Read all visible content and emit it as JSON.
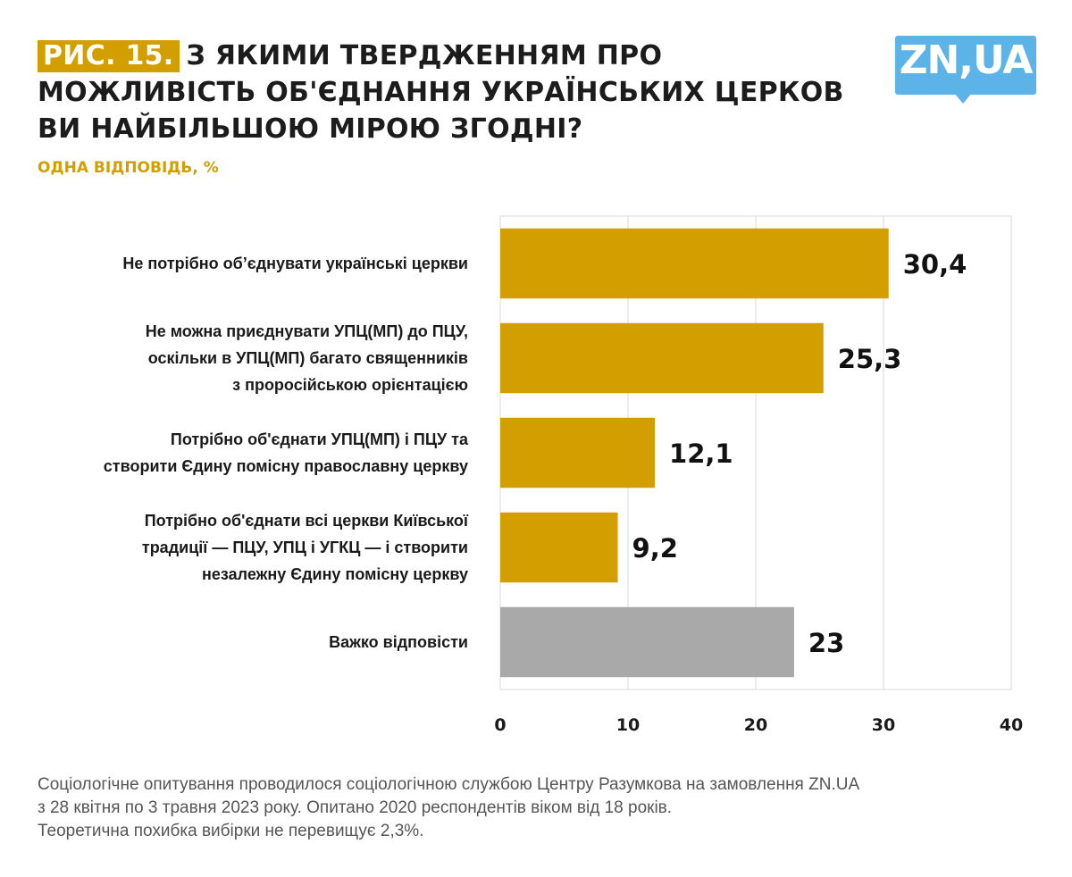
{
  "header": {
    "figure_badge": "Рис. 15.",
    "title": "З якими твердженням про можливість об'єднання українських церков ви найбільшою мірою згодні?",
    "subtitle": "ОДНА ВІДПОВІДЬ, %"
  },
  "logo": {
    "text": "ZN,UA",
    "color": "#5bb3e8"
  },
  "colors": {
    "accent": "#d39e00",
    "neutral_bar": "#a9a9a9",
    "grid": "#d9d9d9"
  },
  "chart_data": {
    "type": "bar",
    "orientation": "horizontal",
    "title": "З яким твердженням про можливість об'єднання українських церков ви найбільшою мірою згодні?",
    "subtitle": "ОДНА ВІДПОВІДЬ, %",
    "categories": [
      [
        "Не потрібно об’єднувати українські церкви"
      ],
      [
        "Не можна приєднувати  УПЦ(МП)  до ПЦУ,",
        "оскільки в УПЦ(МП) багато священників",
        "з проросійською орієнтацією"
      ],
      [
        "Потрібно об'єднати УПЦ(МП) і ПЦУ та",
        "створити Єдину помісну православну церкву"
      ],
      [
        "Потрібно об'єднати всі церкви Київської",
        "традиції — ПЦУ, УПЦ і УГКЦ — і створити",
        "незалежну Єдину помісну церкву"
      ],
      [
        "Важко відповісти"
      ]
    ],
    "values": [
      30.4,
      25.3,
      12.1,
      9.2,
      23
    ],
    "value_labels": [
      "30,4",
      "25,3",
      "12,1",
      "9,2",
      "23"
    ],
    "bar_colors": [
      "#d39e00",
      "#d39e00",
      "#d39e00",
      "#d39e00",
      "#a9a9a9"
    ],
    "xlabel": "",
    "ylabel": "",
    "xlim": [
      0,
      40
    ],
    "xticks": [
      0,
      10,
      20,
      30,
      40
    ],
    "xtick_labels": [
      "0",
      "10",
      "20",
      "30",
      "40"
    ],
    "grid": true,
    "legend": "none"
  },
  "footnote": {
    "lines": [
      "Соціологічне опитування проводилося соціологічною службою Центру Разумкова на замовлення ZN.UA",
      "з 28 квітня по 3 травня 2023 року. Опитано 2020 респондентів віком від 18 років.",
      "Теоретична похибка вибірки не перевищує 2,3%."
    ]
  }
}
